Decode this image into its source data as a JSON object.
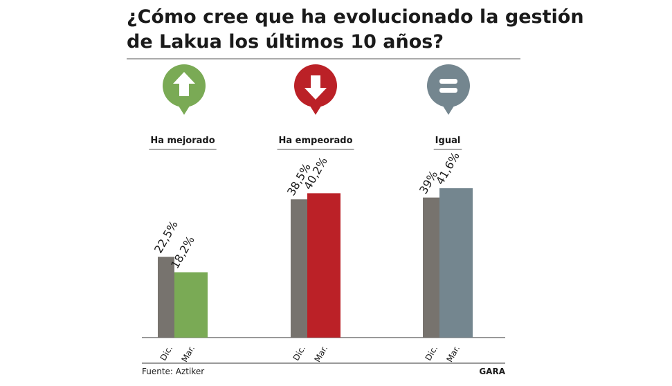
{
  "chart_data": {
    "type": "bar",
    "title": [
      "¿Cómo cree que ha evolucionado la gestión",
      "de Lakua los últimos 10 años?"
    ],
    "categories": [
      "Ha mejorado",
      "Ha empeorado",
      "Igual"
    ],
    "series": [
      {
        "name": "Dic.",
        "colors": [
          "#77736e",
          "#77736e",
          "#77736e"
        ],
        "values": [
          22.5,
          38.5,
          39
        ],
        "value_labels": [
          "22,5%",
          "38,5%",
          "39%"
        ]
      },
      {
        "name": "Mar.",
        "colors": [
          "#7aaa55",
          "#bb2127",
          "#74868f"
        ],
        "values": [
          18.2,
          40.2,
          41.6
        ],
        "value_labels": [
          "18,2%",
          "40,2%",
          "41,6%"
        ]
      }
    ],
    "source": "Fuente: Aztiker",
    "brand": "GARA"
  }
}
